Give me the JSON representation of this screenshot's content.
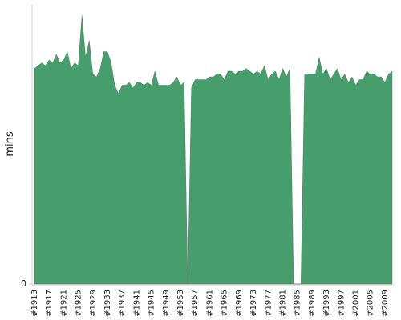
{
  "chart_data": {
    "type": "area",
    "y_label": "mins",
    "color": "#459e6c",
    "categories": [
      "#1913",
      null,
      null,
      null,
      "#1917",
      null,
      null,
      null,
      "#1921",
      null,
      null,
      null,
      "#1925",
      null,
      null,
      null,
      "#1929",
      null,
      null,
      null,
      "#1933",
      null,
      null,
      null,
      "#1937",
      null,
      null,
      null,
      "#1941",
      null,
      null,
      null,
      "#1945",
      null,
      null,
      null,
      "#1949",
      null,
      null,
      null,
      "#1953",
      null,
      null,
      null,
      "#1957",
      null,
      null,
      null,
      "#1961",
      null,
      null,
      null,
      "#1965",
      null,
      null,
      null,
      "#1969",
      null,
      null,
      null,
      "#1973",
      null,
      null,
      null,
      "#1977",
      null,
      null,
      null,
      "#1981",
      null,
      null,
      null,
      "#1985",
      null,
      null,
      null,
      "#1989",
      null,
      null,
      null,
      "#1993",
      null,
      null,
      null,
      "#1997",
      null,
      null,
      null,
      "#2001",
      null,
      null,
      null,
      "#2005",
      null,
      null,
      null,
      "#2009",
      null,
      null
    ],
    "values": [
      77,
      78,
      79,
      78,
      80,
      79,
      82,
      79,
      80,
      83,
      77,
      79,
      78,
      96,
      81,
      87,
      75,
      74,
      77,
      83,
      83,
      79,
      71,
      68,
      71,
      71,
      72,
      70,
      72,
      72,
      71,
      72,
      71,
      76,
      71,
      71,
      71,
      71,
      72,
      74,
      71,
      72,
      0,
      70,
      73,
      73,
      73,
      73,
      74,
      74,
      75,
      75,
      73,
      76,
      76,
      75,
      76,
      76,
      77,
      76,
      75,
      76,
      75,
      78,
      73,
      75,
      76,
      73,
      77,
      74,
      77,
      0,
      0,
      0,
      75,
      75,
      75,
      75,
      81,
      75,
      77,
      73,
      75,
      77,
      73,
      75,
      72,
      74,
      71,
      73,
      73,
      76,
      75,
      75,
      74,
      74,
      72,
      75,
      76
    ],
    "ylim": [
      0,
      100
    ],
    "yticks": [
      0
    ]
  }
}
